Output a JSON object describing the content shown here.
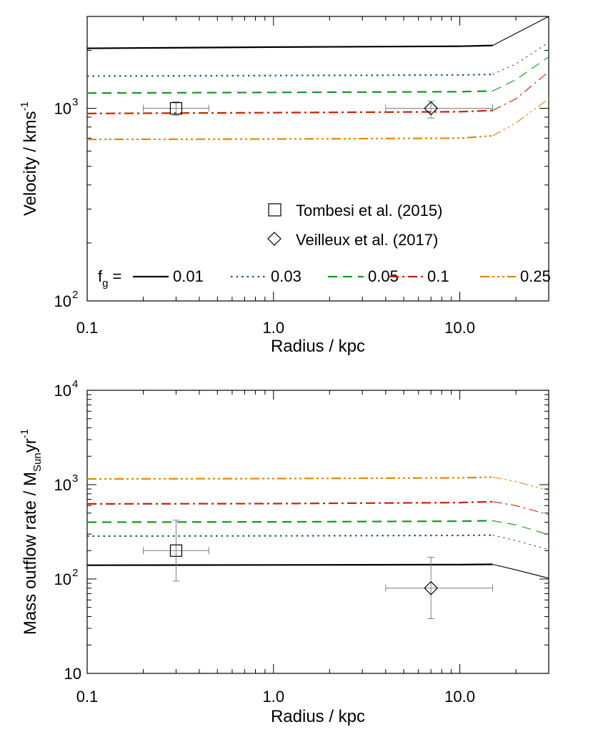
{
  "chart_data": [
    {
      "type": "line",
      "scale": "log-log",
      "xlabel": "Radius / kpc",
      "ylabel": {
        "text": "Velocity / kms",
        "sup": "-1"
      },
      "xlim": [
        0.1,
        30
      ],
      "ylim": [
        100,
        3000
      ],
      "x_ticks": [
        {
          "value": 0.1,
          "label": "0.1"
        },
        {
          "value": 1,
          "label": "1.0"
        },
        {
          "value": 10,
          "label": "10.0"
        }
      ],
      "y_ticks": [
        {
          "value": 100,
          "base": "10",
          "exp": "2"
        },
        {
          "value": 1000,
          "base": "10",
          "exp": "3"
        }
      ],
      "series": [
        {
          "name": "0.01",
          "color": "#000000",
          "style": "solid",
          "x": [
            0.1,
            1,
            10,
            15,
            20,
            30
          ],
          "y": [
            2050,
            2080,
            2100,
            2120,
            2450,
            3000
          ]
        },
        {
          "name": "0.03",
          "color": "#1a5d80",
          "style": "dotted",
          "x": [
            0.1,
            1,
            10,
            15,
            20,
            30
          ],
          "y": [
            1470,
            1480,
            1490,
            1500,
            1700,
            2200
          ]
        },
        {
          "name": "0.05",
          "color": "#109a1e",
          "style": "dashed",
          "x": [
            0.1,
            1,
            10,
            15,
            20,
            30
          ],
          "y": [
            1200,
            1210,
            1220,
            1230,
            1410,
            1850
          ]
        },
        {
          "name": "0.1",
          "color": "#cc2200",
          "style": "dashdot",
          "x": [
            0.1,
            1,
            10,
            15,
            20,
            30
          ],
          "y": [
            940,
            950,
            960,
            975,
            1120,
            1550
          ]
        },
        {
          "name": "0.25",
          "color": "#e88800",
          "style": "dashdotdot",
          "x": [
            0.1,
            1,
            10,
            15,
            20,
            30
          ],
          "y": [
            690,
            693,
            700,
            720,
            840,
            1120
          ]
        }
      ],
      "observations": [
        {
          "name": "Tombesi et al. (2015)",
          "marker": "square",
          "x": 0.3,
          "y": 1000,
          "x_err": [
            0.2,
            0.45
          ],
          "y_err": [
            920,
            1080
          ]
        },
        {
          "name": "Veilleux et al. (2017)",
          "marker": "diamond",
          "x": 7,
          "y": 1000,
          "x_err": [
            4,
            15
          ],
          "y_err": [
            890,
            1090
          ]
        }
      ],
      "legend_label": {
        "text": "f",
        "sub": "g",
        "eq": "="
      }
    },
    {
      "type": "line",
      "scale": "log-log",
      "xlabel": "Radius / kpc",
      "ylabel": {
        "text": "Mass outflow rate / M",
        "sub": "Sun",
        "text2": "yr",
        "sup": "-1"
      },
      "xlim": [
        0.1,
        30
      ],
      "ylim": [
        10,
        10000
      ],
      "x_ticks": [
        {
          "value": 0.1,
          "label": "0.1"
        },
        {
          "value": 1,
          "label": "1.0"
        },
        {
          "value": 10,
          "label": "10.0"
        }
      ],
      "y_ticks": [
        {
          "value": 10,
          "label": "10"
        },
        {
          "value": 100,
          "base": "10",
          "exp": "2"
        },
        {
          "value": 1000,
          "base": "10",
          "exp": "3"
        },
        {
          "value": 10000,
          "base": "10",
          "exp": "4"
        }
      ],
      "series": [
        {
          "name": "0.01",
          "color": "#000000",
          "style": "solid",
          "x": [
            0.1,
            1,
            10,
            15,
            20,
            30
          ],
          "y": [
            140,
            141,
            142,
            143,
            125,
            102
          ]
        },
        {
          "name": "0.03",
          "color": "#1a5d80",
          "style": "dotted",
          "x": [
            0.1,
            1,
            10,
            15,
            20,
            30
          ],
          "y": [
            285,
            287,
            290,
            292,
            255,
            205
          ]
        },
        {
          "name": "0.05",
          "color": "#109a1e",
          "style": "dashed",
          "x": [
            0.1,
            1,
            10,
            15,
            20,
            30
          ],
          "y": [
            400,
            403,
            410,
            415,
            375,
            295
          ]
        },
        {
          "name": "0.1",
          "color": "#cc2200",
          "style": "dashdot",
          "x": [
            0.1,
            1,
            10,
            15,
            20,
            30
          ],
          "y": [
            625,
            630,
            645,
            660,
            600,
            480
          ]
        },
        {
          "name": "0.25",
          "color": "#e88800",
          "style": "dashdotdot",
          "x": [
            0.1,
            1,
            10,
            15,
            20,
            30
          ],
          "y": [
            1150,
            1160,
            1180,
            1200,
            1080,
            870
          ]
        }
      ],
      "observations": [
        {
          "name": "Tombesi et al. (2015)",
          "marker": "square",
          "x": 0.3,
          "y": 200,
          "x_err": [
            0.2,
            0.45
          ],
          "y_err": [
            95,
            420
          ]
        },
        {
          "name": "Veilleux et al. (2017)",
          "marker": "diamond",
          "x": 7,
          "y": 80,
          "x_err": [
            4,
            15
          ],
          "y_err": [
            38,
            170
          ]
        }
      ]
    }
  ],
  "colors": {
    "errorbar": "#808080",
    "axis": "#000000"
  }
}
